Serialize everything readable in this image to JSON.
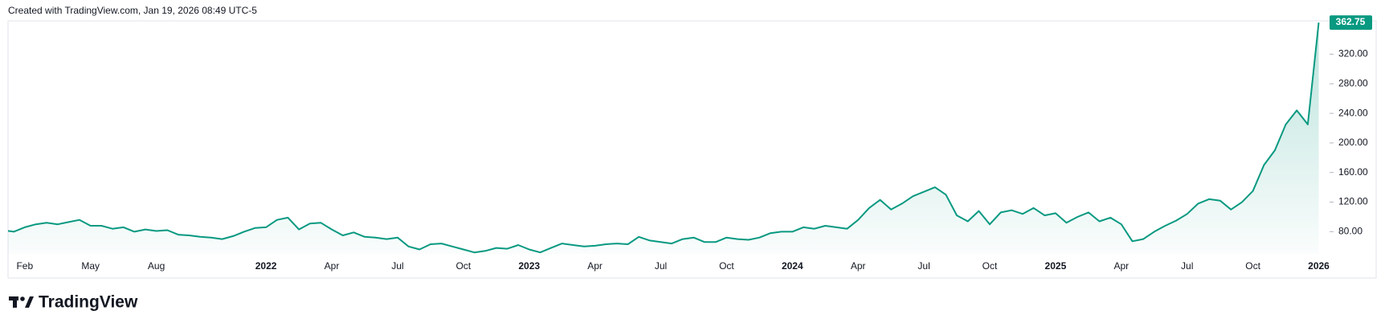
{
  "header": "Created with TradingView.com, Jan 19, 2026 08:49 UTC-5",
  "logo": "TradingView",
  "chart_data": {
    "type": "area",
    "color": "#089981",
    "categories": [
      null,
      null,
      "Feb",
      null,
      null,
      null,
      null,
      null,
      "May",
      null,
      null,
      null,
      null,
      null,
      "Aug",
      null,
      null,
      null,
      null,
      null,
      null,
      null,
      null,
      null,
      "2022",
      null,
      null,
      null,
      null,
      null,
      "Apr",
      null,
      null,
      null,
      null,
      null,
      "Jul",
      null,
      null,
      null,
      null,
      null,
      "Oct",
      null,
      null,
      null,
      null,
      null,
      "2023",
      null,
      null,
      null,
      null,
      null,
      "Apr",
      null,
      null,
      null,
      null,
      null,
      "Jul",
      null,
      null,
      null,
      null,
      null,
      "Oct",
      null,
      null,
      null,
      null,
      null,
      "2024",
      null,
      null,
      null,
      null,
      null,
      "Apr",
      null,
      null,
      null,
      null,
      null,
      "Jul",
      null,
      null,
      null,
      null,
      null,
      "Oct",
      null,
      null,
      null,
      null,
      null,
      "2025",
      null,
      null,
      null,
      null,
      null,
      "Apr",
      null,
      null,
      null,
      null,
      null,
      "Jul",
      null,
      null,
      null,
      null,
      null,
      "Oct",
      null,
      null,
      null,
      null,
      null,
      "2026"
    ],
    "values": [
      82,
      80,
      86,
      90,
      92,
      90,
      93,
      96,
      88,
      88,
      84,
      86,
      80,
      83,
      81,
      82,
      76,
      75,
      73,
      72,
      70,
      74,
      80,
      85,
      86,
      96,
      99,
      83,
      91,
      92,
      83,
      75,
      79,
      73,
      72,
      70,
      72,
      60,
      56,
      63,
      64,
      60,
      56,
      52,
      54,
      58,
      57,
      62,
      56,
      52,
      58,
      64,
      62,
      60,
      61,
      63,
      64,
      63,
      73,
      68,
      66,
      64,
      70,
      72,
      66,
      66,
      72,
      70,
      69,
      72,
      78,
      80,
      80,
      86,
      84,
      88,
      86,
      84,
      96,
      112,
      123,
      110,
      118,
      128,
      134,
      140,
      130,
      102,
      94,
      108,
      90,
      106,
      109,
      104,
      112,
      102,
      105,
      92,
      100,
      106,
      94,
      99,
      90,
      67,
      70,
      80,
      88,
      95,
      104,
      118,
      124,
      122,
      110,
      120,
      135,
      170,
      190,
      225,
      244,
      225,
      362.75
    ],
    "ylim": [
      50,
      365
    ],
    "yticks": [
      {
        "value": 80,
        "label": "80.00"
      },
      {
        "value": 120,
        "label": "120.00"
      },
      {
        "value": 160,
        "label": "160.00"
      },
      {
        "value": 200,
        "label": "200.00"
      },
      {
        "value": 240,
        "label": "240.00"
      },
      {
        "value": 280,
        "label": "280.00"
      },
      {
        "value": 320,
        "label": "320.00"
      }
    ]
  }
}
